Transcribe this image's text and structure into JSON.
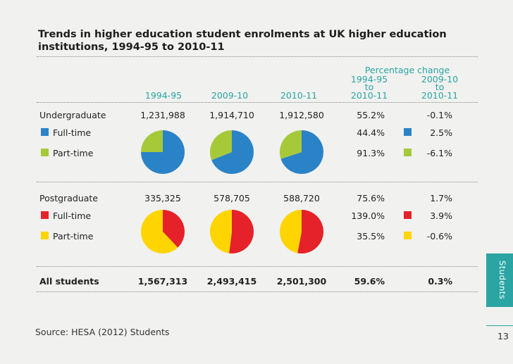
{
  "title": "Trends in higher education student enrolments at UK higher education institutions, 1994-95 to 2010-11",
  "header": {
    "pct_change": "Percentage change",
    "y1": "1994-95",
    "y2": "2009-10",
    "y3": "2010-11",
    "pc1_top": "1994-95",
    "pc1_mid": "to",
    "pc1_bot": "2010-11",
    "pc2_top": "2009-10",
    "pc2_mid": "to",
    "pc2_bot": "2010-11"
  },
  "colors": {
    "accent": "#2aa5a3",
    "ug_full": "#2b83c7",
    "ug_part": "#a6c93a",
    "pg_full": "#e52229",
    "pg_part": "#ffd500"
  },
  "chart_data": [
    {
      "type": "table",
      "columns": [
        "",
        "1994-95",
        "2009-10",
        "2010-11",
        "1994-95 to 2010-11",
        "2009-10 to 2010-11"
      ],
      "rows": [
        {
          "label": "Undergraduate",
          "v1": "1,231,988",
          "v2": "1,914,710",
          "v3": "1,912,580",
          "pc1": "55.2%",
          "pc2": "-0.1%"
        },
        {
          "label": "Full-time",
          "v1": "",
          "v2": "",
          "v3": "",
          "pc1": "44.4%",
          "pc2": "2.5%"
        },
        {
          "label": "Part-time",
          "v1": "",
          "v2": "",
          "v3": "",
          "pc1": "91.3%",
          "pc2": "-6.1%"
        },
        {
          "label": "Postgraduate",
          "v1": "335,325",
          "v2": "578,705",
          "v3": "588,720",
          "pc1": "75.6%",
          "pc2": "1.7%"
        },
        {
          "label": "Full-time",
          "v1": "",
          "v2": "",
          "v3": "",
          "pc1": "139.0%",
          "pc2": "3.9%"
        },
        {
          "label": "Part-time",
          "v1": "",
          "v2": "",
          "v3": "",
          "pc1": "35.5%",
          "pc2": "-0.6%"
        },
        {
          "label": "All students",
          "v1": "1,567,313",
          "v2": "2,493,415",
          "v3": "2,501,300",
          "pc1": "59.6%",
          "pc2": "0.3%"
        }
      ]
    },
    {
      "type": "pie",
      "group": "Undergraduate",
      "categories": [
        "Full-time",
        "Part-time"
      ],
      "pies": [
        {
          "year": "1994-95",
          "values": [
            75,
            25
          ]
        },
        {
          "year": "2009-10",
          "values": [
            69,
            31
          ]
        },
        {
          "year": "2010-11",
          "values": [
            70,
            30
          ]
        }
      ]
    },
    {
      "type": "pie",
      "group": "Postgraduate",
      "categories": [
        "Full-time",
        "Part-time"
      ],
      "pies": [
        {
          "year": "1994-95",
          "values": [
            38,
            62
          ]
        },
        {
          "year": "2009-10",
          "values": [
            52,
            48
          ]
        },
        {
          "year": "2010-11",
          "values": [
            53,
            47
          ]
        }
      ]
    }
  ],
  "source": "Source: HESA (2012) Students",
  "side_label": "Students",
  "page_number": "13"
}
